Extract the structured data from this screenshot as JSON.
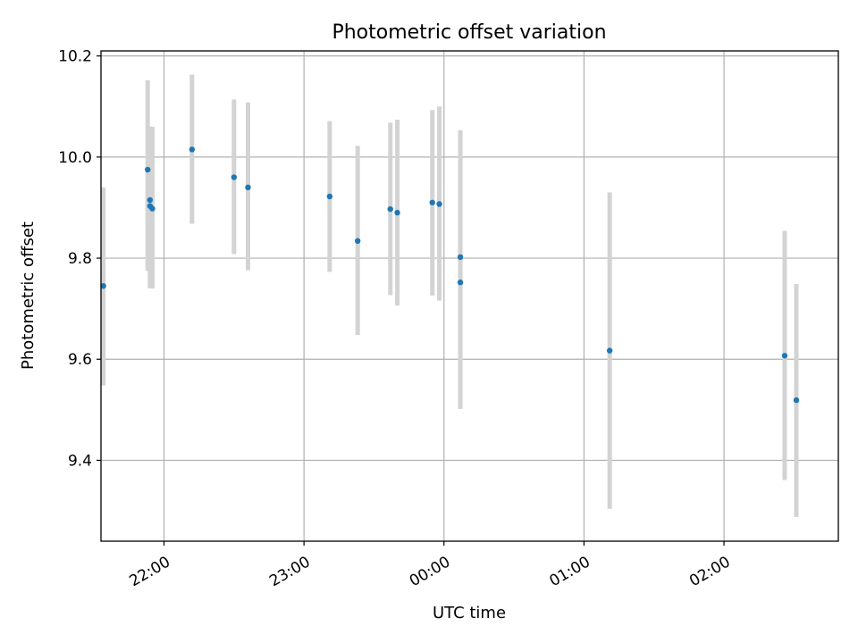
{
  "chart_data": {
    "type": "scatter",
    "title": "Photometric offset variation",
    "xlabel": "UTC time",
    "ylabel": "Photometric offset",
    "x_unit": "time (UTC, hours; date rolls over after midnight)",
    "x_ticks": [
      "22:00",
      "23:00",
      "00:00",
      "01:00",
      "02:00"
    ],
    "y_ticks": [
      "9.4",
      "9.6",
      "9.8",
      "10.0",
      "10.2"
    ],
    "xlim": [
      "21:33",
      "02:49"
    ],
    "ylim": [
      9.24,
      10.21
    ],
    "grid": true,
    "marker_color": "#1f77b4",
    "errorbar_color": "#d3d3d3",
    "points": [
      {
        "x": "21:34",
        "y": 9.745,
        "err_low": 9.548,
        "err_high": 9.94
      },
      {
        "x": "21:53",
        "y": 9.975,
        "err_low": 9.775,
        "err_high": 10.152
      },
      {
        "x": "21:54",
        "y": 9.915,
        "err_low": 9.775,
        "err_high": 10.06
      },
      {
        "x": "21:54",
        "y": 9.903,
        "err_low": 9.74,
        "err_high": 10.06
      },
      {
        "x": "21:55",
        "y": 9.898,
        "err_low": 9.74,
        "err_high": 10.06
      },
      {
        "x": "22:12",
        "y": 10.015,
        "err_low": 9.868,
        "err_high": 10.163
      },
      {
        "x": "22:30",
        "y": 9.96,
        "err_low": 9.808,
        "err_high": 10.114
      },
      {
        "x": "22:36",
        "y": 9.94,
        "err_low": 9.776,
        "err_high": 10.108
      },
      {
        "x": "23:11",
        "y": 9.922,
        "err_low": 9.773,
        "err_high": 10.071
      },
      {
        "x": "23:23",
        "y": 9.834,
        "err_low": 9.648,
        "err_high": 10.022
      },
      {
        "x": "23:37",
        "y": 9.897,
        "err_low": 9.727,
        "err_high": 10.068
      },
      {
        "x": "23:40",
        "y": 9.89,
        "err_low": 9.706,
        "err_high": 10.074
      },
      {
        "x": "23:55",
        "y": 9.91,
        "err_low": 9.726,
        "err_high": 10.093
      },
      {
        "x": "23:58",
        "y": 9.907,
        "err_low": 9.716,
        "err_high": 10.1
      },
      {
        "x": "00:07",
        "y": 9.802,
        "err_low": 9.502,
        "err_high": 10.053
      },
      {
        "x": "00:07",
        "y": 9.752,
        "err_low": 9.502,
        "err_high": 10.053
      },
      {
        "x": "01:11",
        "y": 9.617,
        "err_low": 9.304,
        "err_high": 9.93
      },
      {
        "x": "02:26",
        "y": 9.607,
        "err_low": 9.361,
        "err_high": 9.854
      },
      {
        "x": "02:31",
        "y": 9.519,
        "err_low": 9.288,
        "err_high": 9.749
      }
    ]
  }
}
